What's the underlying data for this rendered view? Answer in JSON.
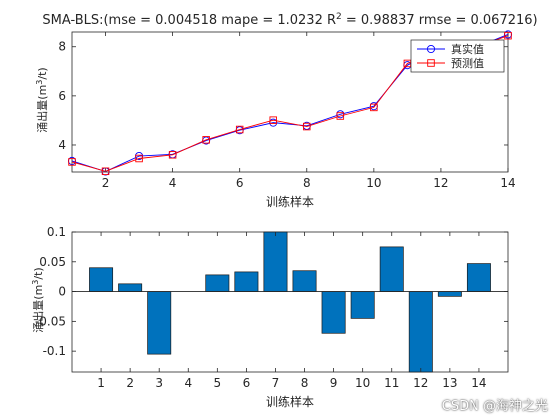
{
  "chart_data": [
    {
      "type": "line",
      "title": "SMA-BLS:(mse = 0.004518 mape = 1.0232  R",
      "title_sup": "2",
      "title_rest": " = 0.98837 rmse = 0.067216)",
      "xlabel": "训练样本",
      "ylabel": "涌出量(m",
      "ylabel_sup": "3",
      "ylabel_rest": "/t)",
      "xlim": [
        1,
        14
      ],
      "ylim": [
        2.9,
        8.6
      ],
      "xticks": [
        "2",
        "4",
        "6",
        "8",
        "10",
        "12",
        "14"
      ],
      "yticks": [
        "4",
        "6",
        "8"
      ],
      "x": [
        1,
        2,
        3,
        4,
        5,
        6,
        7,
        8,
        9,
        10,
        11,
        12,
        13,
        14
      ],
      "grid": false,
      "legend_position": "top-right",
      "series": [
        {
          "name": "真实值",
          "color": "#0000ff",
          "marker": "circle",
          "values": [
            3.35,
            2.92,
            3.55,
            3.62,
            4.18,
            4.6,
            4.91,
            4.78,
            5.25,
            5.58,
            7.25,
            7.9,
            7.95,
            8.5
          ]
        },
        {
          "name": "预测值",
          "color": "#ff0000",
          "marker": "square",
          "values": [
            3.31,
            2.93,
            3.45,
            3.6,
            4.21,
            4.63,
            5.01,
            4.75,
            5.18,
            5.53,
            7.32,
            7.77,
            7.96,
            8.45
          ]
        }
      ]
    },
    {
      "type": "bar",
      "xlabel": "训练样本",
      "ylabel": "涌出量(m",
      "ylabel_sup": "3",
      "ylabel_rest": "/t)",
      "categories": [
        "1",
        "2",
        "3",
        "4",
        "5",
        "6",
        "7",
        "8",
        "9",
        "10",
        "11",
        "12",
        "13",
        "14"
      ],
      "values": [
        0.04,
        0.013,
        -0.105,
        0.0,
        0.028,
        0.033,
        0.1,
        0.035,
        -0.07,
        -0.045,
        0.075,
        -0.135,
        -0.008,
        0.047
      ],
      "ylim": [
        -0.135,
        0.1
      ],
      "yticks": [
        "0.1",
        "0.05",
        "0",
        "-0.05",
        "-0.1"
      ],
      "ytick_values": [
        0.1,
        0.05,
        0,
        -0.05,
        -0.1
      ],
      "bar_color": "#0072bd",
      "grid": false
    }
  ],
  "watermark": "CSDN @海神之光"
}
